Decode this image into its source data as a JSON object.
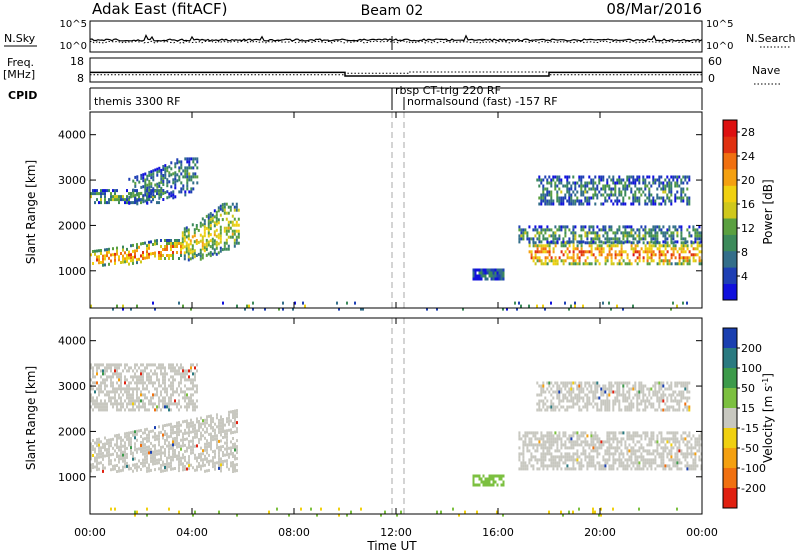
{
  "header": {
    "title": "Adak East (fitACF)",
    "beam": "Beam 02",
    "date": "08/Mar/2016"
  },
  "top_panels": {
    "nsky_label": "N.Sky",
    "nsearch_label": "N.Search",
    "freq_label_line1": "Freq.",
    "freq_label_line2": "[MHz]",
    "nave_label": "Nave",
    "cpid_label": "CPID",
    "noise_ticks": [
      "10^5",
      "10^0"
    ],
    "freq_ticks": [
      "18",
      "8"
    ],
    "nave_ticks": [
      "60",
      "0"
    ],
    "cpid_programs": [
      {
        "name": "themis 3300 RF",
        "start_hour": 0
      },
      {
        "name": "rbsp CT-trig 220 RF",
        "start_hour": 12.0
      },
      {
        "name": "normalsound (fast) -157 RF",
        "start_hour": 12.6
      }
    ],
    "freq_series": [
      {
        "from_hour": 0,
        "to_hour": 10.0,
        "mhz": 12.0
      },
      {
        "from_hour": 10.0,
        "to_hour": 18.0,
        "mhz": 10.5
      },
      {
        "from_hour": 18.0,
        "to_hour": 24.0,
        "mhz": 12.0
      }
    ],
    "nave_series": [
      {
        "from_hour": 0,
        "to_hour": 10.0,
        "value": 18
      },
      {
        "from_hour": 10.0,
        "to_hour": 12.5,
        "value": 22
      },
      {
        "from_hour": 12.5,
        "to_hour": 18.0,
        "value": 25
      },
      {
        "from_hour": 18.0,
        "to_hour": 24.0,
        "value": 18
      }
    ]
  },
  "chart_data": [
    {
      "type": "heatmap",
      "name": "power",
      "ylabel": "Slant Range [km]",
      "xlabel": "Time UT",
      "xlim_hours": [
        0,
        24
      ],
      "ylim_km": [
        180,
        4500
      ],
      "y_ticks": [
        "1000",
        "2000",
        "3000",
        "4000"
      ],
      "x_ticks": [
        "00:00",
        "04:00",
        "08:00",
        "12:00",
        "16:00",
        "20:00",
        "00:00"
      ],
      "colorbar": {
        "label": "Power [dB]",
        "ticks": [
          "4",
          "8",
          "12",
          "16",
          "20",
          "24",
          "28"
        ],
        "range": [
          0,
          30
        ],
        "colors": [
          "#1010dd",
          "#1e3fb4",
          "#336e8a",
          "#3c8a5a",
          "#5aa040",
          "#cfc81c",
          "#f0d010",
          "#f4a010",
          "#f07010",
          "#e03010",
          "#dd1010"
        ]
      },
      "echo_regions": [
        {
          "t0": 0.0,
          "t1": 3.6,
          "r0": 1150,
          "r1": 1700,
          "intensity": 0.75,
          "shape": "band_rising"
        },
        {
          "t0": 3.6,
          "t1": 5.8,
          "r0": 1250,
          "r1": 2500,
          "intensity": 0.55,
          "shape": "band_rising"
        },
        {
          "t0": 0.0,
          "t1": 2.8,
          "r0": 2500,
          "r1": 2800,
          "intensity": 0.35,
          "shape": "band"
        },
        {
          "t0": 1.5,
          "t1": 4.2,
          "r0": 2500,
          "r1": 3500,
          "intensity": 0.3,
          "shape": "band_rising"
        },
        {
          "t0": 15.0,
          "t1": 16.2,
          "r0": 850,
          "r1": 1050,
          "intensity": 0.2,
          "shape": "blob"
        },
        {
          "t0": 17.2,
          "t1": 24.0,
          "r0": 1150,
          "r1": 1650,
          "intensity": 0.75,
          "shape": "band"
        },
        {
          "t0": 16.8,
          "t1": 24.0,
          "r0": 1650,
          "r1": 2000,
          "intensity": 0.35,
          "shape": "band"
        },
        {
          "t0": 17.5,
          "t1": 23.5,
          "r0": 2500,
          "r1": 3100,
          "intensity": 0.3,
          "shape": "band"
        },
        {
          "t0": 0.0,
          "t1": 24.0,
          "r0": 180,
          "r1": 320,
          "intensity": 0.45,
          "shape": "ground"
        }
      ]
    },
    {
      "type": "heatmap",
      "name": "velocity",
      "ylabel": "Slant Range [km]",
      "xlabel": "Time UT",
      "xlim_hours": [
        0,
        24
      ],
      "ylim_km": [
        180,
        4500
      ],
      "y_ticks": [
        "1000",
        "2000",
        "3000",
        "4000"
      ],
      "x_ticks": [
        "00:00",
        "04:00",
        "08:00",
        "12:00",
        "16:00",
        "20:00",
        "00:00"
      ],
      "colorbar": {
        "label": "Velocity [m s^-1]",
        "ticks": [
          "200",
          "100",
          "50",
          "15",
          "-15",
          "-50",
          "-100",
          "-200"
        ],
        "colors": [
          "#1a3fb0",
          "#2a7a80",
          "#3c9a4a",
          "#7cc040",
          "#c8c8c0",
          "#f0d010",
          "#f4a010",
          "#f07010",
          "#e02010"
        ]
      },
      "dominant_value": "gray (|v| < 15 m/s)",
      "scatter_regions": [
        {
          "t0": 0.0,
          "t1": 5.8,
          "r0": 1150,
          "r1": 2500
        },
        {
          "t0": 0.0,
          "t1": 4.2,
          "r0": 2500,
          "r1": 3500
        },
        {
          "t0": 15.0,
          "t1": 16.2,
          "r0": 850,
          "r1": 1050
        },
        {
          "t0": 16.8,
          "t1": 24.0,
          "r0": 1150,
          "r1": 2000
        },
        {
          "t0": 17.5,
          "t1": 23.5,
          "r0": 2500,
          "r1": 3100
        },
        {
          "t0": 0.0,
          "t1": 24.0,
          "r0": 180,
          "r1": 320
        }
      ]
    }
  ]
}
